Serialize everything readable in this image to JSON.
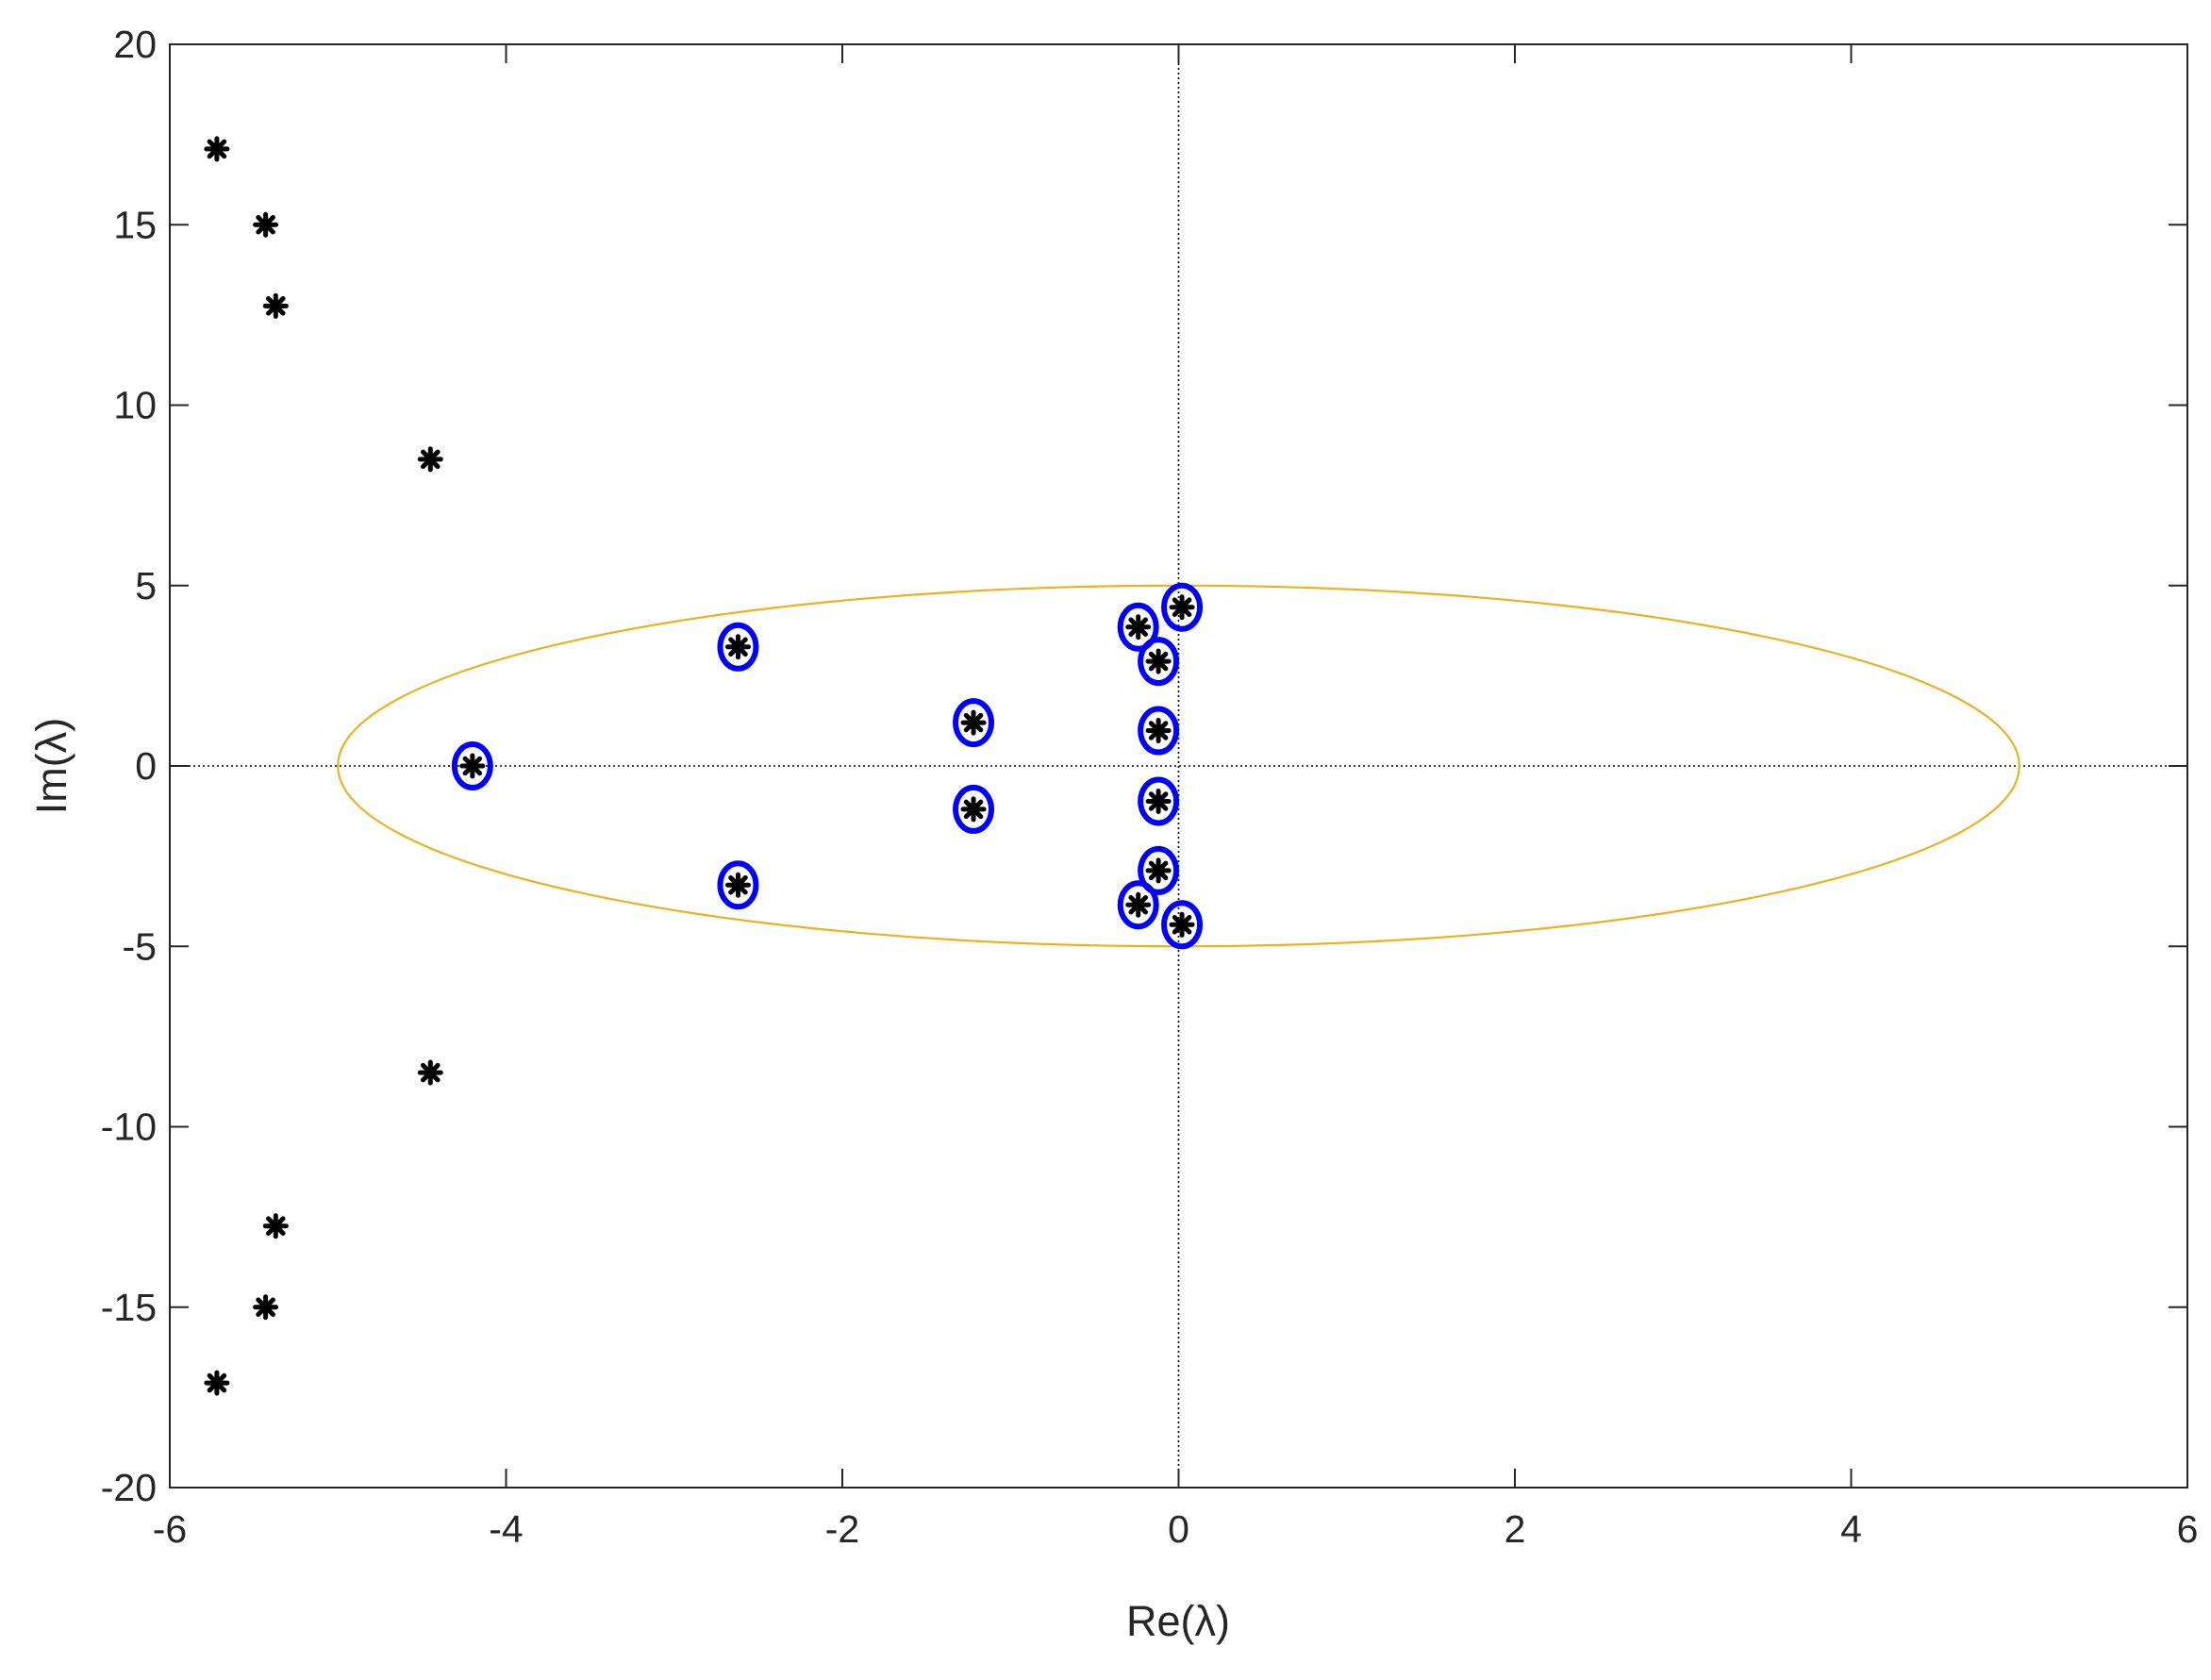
{
  "chart_data": {
    "type": "scatter",
    "title": "",
    "xlabel": "Re(λ)",
    "ylabel": "Im(λ)",
    "xlim": [
      -6,
      6
    ],
    "ylim": [
      -20,
      20
    ],
    "xticks": [
      -6,
      -4,
      -2,
      0,
      2,
      4,
      6
    ],
    "yticks": [
      -20,
      -15,
      -10,
      -5,
      0,
      5,
      10,
      15,
      20
    ],
    "grid": false,
    "legend": "none",
    "reference_lines": {
      "x": 0,
      "y": 0,
      "color": "#000000",
      "style": "dotted"
    },
    "ellipse": {
      "center": [
        0,
        0
      ],
      "semi_axis_x": 5,
      "semi_axis_y": 5,
      "color": "#EDB120"
    },
    "series": [
      {
        "marker": "asterisk",
        "color": "#000000",
        "points": [
          [
            -5.72,
            17.1
          ],
          [
            -5.43,
            15.0
          ],
          [
            -5.37,
            12.75
          ],
          [
            -4.45,
            8.5
          ],
          [
            -4.2,
            0.0
          ],
          [
            -2.62,
            3.3
          ],
          [
            -2.62,
            -3.3
          ],
          [
            -1.22,
            1.2
          ],
          [
            -1.22,
            -1.2
          ],
          [
            -0.24,
            3.85
          ],
          [
            -0.24,
            -3.85
          ],
          [
            -0.12,
            2.9
          ],
          [
            -0.12,
            -2.9
          ],
          [
            -0.12,
            0.98
          ],
          [
            -0.12,
            -0.98
          ],
          [
            0.02,
            4.4
          ],
          [
            0.02,
            -4.4
          ],
          [
            -4.45,
            -8.5
          ],
          [
            -5.37,
            -12.75
          ],
          [
            -5.43,
            -15.0
          ],
          [
            -5.72,
            -17.1
          ]
        ]
      },
      {
        "marker": "circle",
        "color": "#0000FF",
        "points": [
          [
            -4.2,
            0.0
          ],
          [
            -2.62,
            3.3
          ],
          [
            -2.62,
            -3.3
          ],
          [
            -1.22,
            1.2
          ],
          [
            -1.22,
            -1.2
          ],
          [
            -0.24,
            3.85
          ],
          [
            -0.24,
            -3.85
          ],
          [
            -0.12,
            2.9
          ],
          [
            -0.12,
            -2.9
          ],
          [
            -0.12,
            0.98
          ],
          [
            -0.12,
            -0.98
          ],
          [
            0.02,
            4.4
          ],
          [
            0.02,
            -4.4
          ]
        ]
      }
    ]
  }
}
